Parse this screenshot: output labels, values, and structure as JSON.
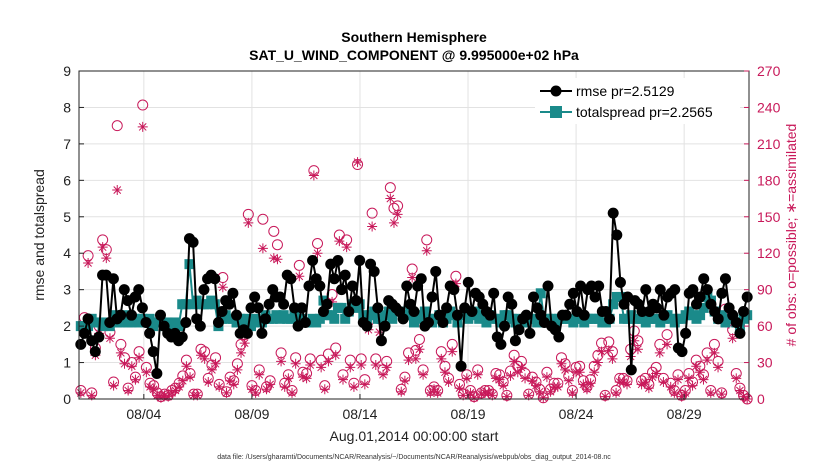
{
  "chart_data": {
    "type": "line",
    "title": "Southern Hemisphere",
    "subtitle": "SAT_U_WIND_COMPONENT @ 9.995000e+02 hPa",
    "xlabel": "Aug.01,2014 00:00:00 start",
    "ylabel": "rmse and totalspread",
    "y2label": "# of obs: o=possible; ∗=assimilated",
    "footnote": "data file: /Users/gharamti/Documents/NCAR/Reanalysis/~/Documents/NCAR/Reanalysis/webpub/obs_diag_output_2014-08.nc",
    "xlim": [
      0,
      31
    ],
    "ylim": [
      0,
      9
    ],
    "y2lim": [
      0,
      270
    ],
    "xticks": [
      3,
      8,
      13,
      18,
      23,
      28
    ],
    "xtick_labels": [
      "08/04",
      "08/09",
      "08/14",
      "08/19",
      "08/24",
      "08/29"
    ],
    "yticks": [
      0,
      1,
      2,
      3,
      4,
      5,
      6,
      7,
      8,
      9
    ],
    "y2ticks": [
      0,
      30,
      60,
      90,
      120,
      150,
      180,
      210,
      240,
      270
    ],
    "grid": true,
    "legend_location": "top-right",
    "series": [
      {
        "name": "rmse pr=2.5129",
        "color": "#000000",
        "marker": "circle",
        "values": [
          1.5,
          1.8,
          2.2,
          1.6,
          1.3,
          1.7,
          3.4,
          3.4,
          2.1,
          3.3,
          2.2,
          2.3,
          3.0,
          2.7,
          2.3,
          2.8,
          3.0,
          2.5,
          2.1,
          1.8,
          1.3,
          0.7,
          2.3,
          2.0,
          1.8,
          1.7,
          1.8,
          1.6,
          1.7,
          2.1,
          4.4,
          4.3,
          2.2,
          2.0,
          3.0,
          3.3,
          3.4,
          3.3,
          2.1,
          2.4,
          2.7,
          2.6,
          2.9,
          2.3,
          1.8,
          1.9,
          1.8,
          2.5,
          2.8,
          2.5,
          1.8,
          2.2,
          2.6,
          3.0,
          2.8,
          2.8,
          2.6,
          3.4,
          3.3,
          2.5,
          2.0,
          2.5,
          2.1,
          3.1,
          3.8,
          3.3,
          3.1,
          2.4,
          2.6,
          3.7,
          3.3,
          3.8,
          3.0,
          3.4,
          2.4,
          3.1,
          2.7,
          3.8,
          2.1,
          2.0,
          3.7,
          3.5,
          2.5,
          1.6,
          2.0,
          2.7,
          2.6,
          2.5,
          2.4,
          2.2,
          3.1,
          2.6,
          2.4,
          3.1,
          3.3,
          2.0,
          2.1,
          2.8,
          3.5,
          2.3,
          2.1,
          2.5,
          3.1,
          3.0,
          2.3,
          0.9,
          2.5,
          3.2,
          2.4,
          2.9,
          2.8,
          2.6,
          2.4,
          2.3,
          2.9,
          1.7,
          1.5,
          2.0,
          2.8,
          2.6,
          1.6,
          1.9,
          2.2,
          2.3,
          1.8,
          2.8,
          2.5,
          2.3,
          2.1,
          3.1,
          2.0,
          1.9,
          1.7,
          2.3,
          2.3,
          2.6,
          2.9,
          2.4,
          3.1,
          2.3,
          3.0,
          3.1,
          2.8,
          3.1,
          2.4,
          2.4,
          2.2,
          5.1,
          4.5,
          3.2,
          2.6,
          2.8,
          0.8,
          2.7,
          2.6,
          2.4,
          3.0,
          2.4,
          2.6,
          2.5,
          3.0,
          2.3,
          2.8,
          2.9,
          3.0,
          1.4,
          1.3,
          1.8,
          2.9,
          3.0,
          2.6,
          2.8,
          3.3,
          3.0,
          2.6,
          2.4,
          2.2,
          2.9,
          3.3,
          2.5,
          2.3,
          2.1,
          1.8,
          2.4,
          2.8
        ]
      },
      {
        "name": "totalspread pr=2.2565",
        "color": "#1a8a8a",
        "marker": "square",
        "values": [
          2.0,
          2.0,
          2.0,
          2.2,
          2.1,
          2.1,
          2.0,
          2.1,
          2.0,
          2.3,
          2.1,
          2.1,
          2.3,
          2.1,
          2.1,
          2.2,
          2.1,
          2.2,
          2.1,
          2.2,
          2.0,
          2.1,
          2.1,
          2.0,
          2.1,
          2.0,
          2.1,
          2.0,
          2.6,
          2.6,
          3.7,
          2.6,
          2.7,
          2.6,
          2.6,
          2.6,
          2.7,
          2.6,
          2.0,
          2.2,
          2.3,
          2.2,
          2.2,
          2.1,
          2.2,
          2.1,
          2.2,
          2.0,
          2.2,
          2.1,
          2.1,
          2.3,
          2.2,
          2.2,
          2.3,
          2.2,
          2.3,
          2.2,
          2.2,
          2.4,
          2.2,
          2.2,
          2.1,
          2.1,
          2.2,
          2.1,
          2.2,
          2.7,
          2.3,
          2.3,
          2.2,
          2.5,
          2.5,
          2.2,
          2.4,
          2.6,
          2.5,
          2.6,
          2.3,
          2.2,
          2.3,
          2.4,
          2.2,
          2.2,
          2.3,
          2.4,
          2.2,
          2.4,
          2.4,
          2.3,
          2.3,
          2.4,
          2.1,
          2.3,
          2.2,
          2.4,
          2.2,
          2.1,
          2.2,
          2.3,
          2.1,
          2.2,
          2.4,
          2.3,
          2.1,
          2.3,
          2.4,
          2.2,
          2.3,
          2.4,
          2.2,
          2.3,
          2.1,
          2.3,
          2.2,
          2.2,
          2.1,
          2.3,
          2.3,
          2.2,
          2.1,
          2.2,
          2.1,
          2.1,
          2.2,
          2.2,
          2.1,
          2.9,
          2.1,
          2.2,
          2.2,
          2.1,
          2.2,
          2.2,
          2.2,
          2.2,
          2.1,
          2.2,
          2.2,
          2.1,
          2.2,
          2.2,
          2.2,
          2.2,
          2.1,
          2.1,
          2.2,
          2.6,
          2.8,
          2.8,
          2.2,
          2.2,
          2.3,
          2.2,
          2.2,
          2.2,
          2.1,
          2.2,
          2.2,
          2.2,
          2.1,
          2.2,
          2.3,
          2.2,
          2.1,
          2.2,
          2.2,
          2.3,
          2.4,
          2.3,
          2.2,
          2.3,
          2.5,
          2.8,
          2.7,
          2.4,
          2.2,
          2.3,
          2.1,
          2.2,
          2.2,
          2.1,
          2.0,
          2.2,
          2.3
        ]
      },
      {
        "name": "possible",
        "color": "#c8195a",
        "marker": "circle-open",
        "axis": "right",
        "values": [
          7,
          67,
          118,
          5,
          42,
          60,
          131,
          123,
          55,
          14,
          225,
          45,
          34,
          9,
          30,
          18,
          39,
          242,
          26,
          13,
          11,
          5,
          2,
          4,
          3,
          7,
          9,
          13,
          19,
          32,
          21,
          4,
          4,
          41,
          39,
          17,
          28,
          34,
          12,
          100,
          6,
          18,
          15,
          29,
          45,
          53,
          152,
          11,
          7,
          24,
          148,
          10,
          15,
          138,
          127,
          38,
          13,
          20,
          7,
          34,
          110,
          22,
          21,
          33,
          188,
          128,
          32,
          11,
          37,
          86,
          42,
          135,
          20,
          131,
          32,
          13,
          193,
          33,
          16,
          64,
          153,
          33,
          66,
          24,
          31,
          174,
          157,
          159,
          8,
          18,
          38,
          107,
          40,
          49,
          24,
          131,
          7,
          10,
          7,
          39,
          27,
          17,
          45,
          101,
          12,
          4,
          20,
          7,
          2,
          24,
          5,
          7,
          7,
          4,
          21,
          20,
          14,
          3,
          23,
          36,
          27,
          31,
          21,
          4,
          18,
          14,
          8,
          1,
          22,
          8,
          13,
          13,
          34,
          29,
          19,
          7,
          26,
          27,
          15,
          10,
          16,
          27,
          36,
          46,
          3,
          47,
          39,
          7,
          17,
          17,
          15,
          41,
          56,
          48,
          15,
          17,
          12,
          22,
          26,
          45,
          17,
          53,
          13,
          7,
          20,
          3,
          7,
          21,
          14,
          32,
          27,
          20,
          38,
          7,
          45,
          31,
          5,
          74,
          72,
          57,
          21,
          9,
          3,
          0
        ]
      },
      {
        "name": "assimilated",
        "color": "#c8195a",
        "marker": "asterisk",
        "axis": "right",
        "values": [
          5,
          60,
          112,
          3,
          36,
          54,
          125,
          116,
          50,
          11,
          172,
          38,
          29,
          7,
          27,
          16,
          34,
          224,
          22,
          10,
          8,
          3,
          1,
          3,
          2,
          5,
          7,
          10,
          15,
          27,
          18,
          3,
          3,
          36,
          33,
          14,
          24,
          29,
          10,
          92,
          5,
          15,
          12,
          24,
          38,
          46,
          145,
          8,
          5,
          20,
          124,
          8,
          12,
          116,
          115,
          31,
          10,
          17,
          5,
          29,
          101,
          18,
          17,
          28,
          184,
          120,
          26,
          8,
          31,
          80,
          36,
          130,
          16,
          125,
          26,
          10,
          195,
          28,
          12,
          57,
          142,
          28,
          55,
          20,
          26,
          165,
          145,
          152,
          6,
          15,
          32,
          100,
          33,
          41,
          20,
          122,
          5,
          8,
          5,
          33,
          22,
          14,
          39,
          95,
          9,
          3,
          17,
          5,
          1,
          20,
          4,
          5,
          5,
          3,
          17,
          16,
          11,
          2,
          19,
          31,
          22,
          26,
          17,
          3,
          15,
          11,
          6,
          1,
          18,
          6,
          10,
          10,
          29,
          24,
          15,
          5,
          22,
          22,
          12,
          8,
          13,
          22,
          30,
          39,
          2,
          40,
          33,
          5,
          14,
          14,
          12,
          35,
          48,
          41,
          12,
          14,
          9,
          18,
          21,
          38,
          14,
          45,
          10,
          5,
          16,
          2,
          5,
          17,
          11,
          27,
          22,
          16,
          32,
          5,
          38,
          26,
          4,
          65,
          62,
          50,
          17,
          7,
          2,
          0
        ]
      }
    ]
  }
}
